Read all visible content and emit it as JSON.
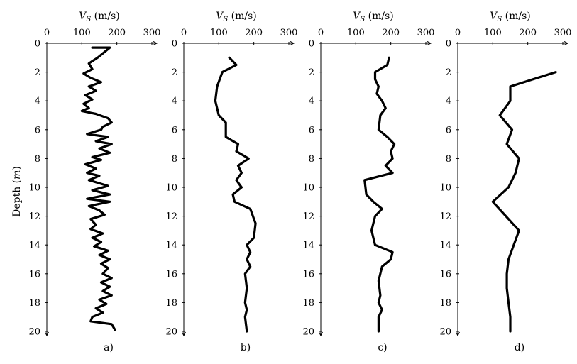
{
  "chart_data": [
    {
      "type": "line",
      "panel_label": "a)",
      "xlabel": "V_S (m/s)",
      "ylabel": "Depth (m)",
      "xlim": [
        0,
        300
      ],
      "ylim": [
        0,
        20
      ],
      "x_ticks": [
        0,
        100,
        200,
        300
      ],
      "y_ticks": [
        0,
        2,
        4,
        6,
        8,
        10,
        12,
        14,
        16,
        18,
        20
      ],
      "series": [
        {
          "points": [
            {
              "x": 130,
              "y": 0.3
            },
            {
              "x": 180,
              "y": 0.3
            },
            {
              "x": 160,
              "y": 0.7
            },
            {
              "x": 145,
              "y": 1.0
            },
            {
              "x": 120,
              "y": 1.4
            },
            {
              "x": 130,
              "y": 1.8
            },
            {
              "x": 105,
              "y": 2.1
            },
            {
              "x": 125,
              "y": 2.4
            },
            {
              "x": 155,
              "y": 2.7
            },
            {
              "x": 120,
              "y": 3.0
            },
            {
              "x": 140,
              "y": 3.3
            },
            {
              "x": 110,
              "y": 3.6
            },
            {
              "x": 130,
              "y": 3.9
            },
            {
              "x": 105,
              "y": 4.2
            },
            {
              "x": 120,
              "y": 4.5
            },
            {
              "x": 100,
              "y": 4.7
            },
            {
              "x": 140,
              "y": 4.9
            },
            {
              "x": 175,
              "y": 5.2
            },
            {
              "x": 185,
              "y": 5.5
            },
            {
              "x": 160,
              "y": 5.8
            },
            {
              "x": 155,
              "y": 6.0
            },
            {
              "x": 115,
              "y": 6.3
            },
            {
              "x": 175,
              "y": 6.5
            },
            {
              "x": 140,
              "y": 6.8
            },
            {
              "x": 185,
              "y": 7.0
            },
            {
              "x": 150,
              "y": 7.3
            },
            {
              "x": 180,
              "y": 7.6
            },
            {
              "x": 130,
              "y": 7.9
            },
            {
              "x": 155,
              "y": 8.1
            },
            {
              "x": 110,
              "y": 8.4
            },
            {
              "x": 140,
              "y": 8.7
            },
            {
              "x": 115,
              "y": 9.0
            },
            {
              "x": 150,
              "y": 9.2
            },
            {
              "x": 120,
              "y": 9.5
            },
            {
              "x": 175,
              "y": 9.9
            },
            {
              "x": 130,
              "y": 10.2
            },
            {
              "x": 180,
              "y": 10.5
            },
            {
              "x": 115,
              "y": 10.8
            },
            {
              "x": 180,
              "y": 11.0
            },
            {
              "x": 120,
              "y": 11.3
            },
            {
              "x": 150,
              "y": 11.6
            },
            {
              "x": 165,
              "y": 11.9
            },
            {
              "x": 125,
              "y": 12.2
            },
            {
              "x": 140,
              "y": 12.6
            },
            {
              "x": 125,
              "y": 12.9
            },
            {
              "x": 160,
              "y": 13.2
            },
            {
              "x": 130,
              "y": 13.5
            },
            {
              "x": 155,
              "y": 13.8
            },
            {
              "x": 135,
              "y": 14.1
            },
            {
              "x": 175,
              "y": 14.4
            },
            {
              "x": 150,
              "y": 14.7
            },
            {
              "x": 180,
              "y": 15.0
            },
            {
              "x": 155,
              "y": 15.3
            },
            {
              "x": 175,
              "y": 15.6
            },
            {
              "x": 160,
              "y": 16.0
            },
            {
              "x": 185,
              "y": 16.3
            },
            {
              "x": 155,
              "y": 16.6
            },
            {
              "x": 180,
              "y": 16.9
            },
            {
              "x": 160,
              "y": 17.2
            },
            {
              "x": 185,
              "y": 17.5
            },
            {
              "x": 150,
              "y": 17.8
            },
            {
              "x": 170,
              "y": 18.1
            },
            {
              "x": 140,
              "y": 18.4
            },
            {
              "x": 160,
              "y": 18.7
            },
            {
              "x": 130,
              "y": 19.0
            },
            {
              "x": 125,
              "y": 19.3
            },
            {
              "x": 185,
              "y": 19.5
            },
            {
              "x": 195,
              "y": 19.9
            }
          ]
        }
      ]
    },
    {
      "type": "line",
      "panel_label": "b)",
      "xlabel": "V_S (m/s)",
      "ylabel": "",
      "xlim": [
        0,
        300
      ],
      "ylim": [
        0,
        20
      ],
      "x_ticks": [
        0,
        100,
        200,
        300
      ],
      "y_ticks": [
        0,
        2,
        4,
        6,
        8,
        10,
        12,
        14,
        16,
        18,
        20
      ],
      "series": [
        {
          "points": [
            {
              "x": 130,
              "y": 1.0
            },
            {
              "x": 150,
              "y": 1.5
            },
            {
              "x": 110,
              "y": 2.0
            },
            {
              "x": 95,
              "y": 3.0
            },
            {
              "x": 90,
              "y": 4.0
            },
            {
              "x": 100,
              "y": 5.0
            },
            {
              "x": 120,
              "y": 5.5
            },
            {
              "x": 120,
              "y": 6.5
            },
            {
              "x": 155,
              "y": 7.0
            },
            {
              "x": 150,
              "y": 7.5
            },
            {
              "x": 185,
              "y": 8.0
            },
            {
              "x": 155,
              "y": 8.5
            },
            {
              "x": 165,
              "y": 9.0
            },
            {
              "x": 150,
              "y": 9.5
            },
            {
              "x": 165,
              "y": 10.0
            },
            {
              "x": 140,
              "y": 10.5
            },
            {
              "x": 145,
              "y": 11.0
            },
            {
              "x": 190,
              "y": 11.5
            },
            {
              "x": 205,
              "y": 12.5
            },
            {
              "x": 200,
              "y": 13.5
            },
            {
              "x": 180,
              "y": 14.0
            },
            {
              "x": 190,
              "y": 14.5
            },
            {
              "x": 180,
              "y": 15.0
            },
            {
              "x": 190,
              "y": 15.5
            },
            {
              "x": 175,
              "y": 16.0
            },
            {
              "x": 180,
              "y": 17.0
            },
            {
              "x": 175,
              "y": 18.0
            },
            {
              "x": 180,
              "y": 18.5
            },
            {
              "x": 175,
              "y": 19.0
            },
            {
              "x": 180,
              "y": 20.0
            }
          ]
        }
      ]
    },
    {
      "type": "line",
      "panel_label": "c)",
      "xlabel": "V_S (m/s)",
      "ylabel": "",
      "xlim": [
        0,
        300
      ],
      "ylim": [
        0,
        20
      ],
      "x_ticks": [
        0,
        100,
        200,
        300
      ],
      "y_ticks": [
        0,
        2,
        4,
        6,
        8,
        10,
        12,
        14,
        16,
        18,
        20
      ],
      "series": [
        {
          "points": [
            {
              "x": 195,
              "y": 1.0
            },
            {
              "x": 190,
              "y": 1.5
            },
            {
              "x": 155,
              "y": 2.0
            },
            {
              "x": 155,
              "y": 2.5
            },
            {
              "x": 165,
              "y": 3.0
            },
            {
              "x": 160,
              "y": 3.5
            },
            {
              "x": 175,
              "y": 4.0
            },
            {
              "x": 185,
              "y": 4.5
            },
            {
              "x": 170,
              "y": 5.0
            },
            {
              "x": 165,
              "y": 6.0
            },
            {
              "x": 190,
              "y": 6.5
            },
            {
              "x": 210,
              "y": 7.0
            },
            {
              "x": 200,
              "y": 7.5
            },
            {
              "x": 205,
              "y": 8.0
            },
            {
              "x": 185,
              "y": 8.5
            },
            {
              "x": 205,
              "y": 9.0
            },
            {
              "x": 125,
              "y": 9.5
            },
            {
              "x": 130,
              "y": 10.5
            },
            {
              "x": 150,
              "y": 11.0
            },
            {
              "x": 175,
              "y": 11.5
            },
            {
              "x": 155,
              "y": 12.0
            },
            {
              "x": 145,
              "y": 13.0
            },
            {
              "x": 155,
              "y": 14.0
            },
            {
              "x": 205,
              "y": 14.5
            },
            {
              "x": 200,
              "y": 15.0
            },
            {
              "x": 175,
              "y": 15.5
            },
            {
              "x": 165,
              "y": 16.5
            },
            {
              "x": 170,
              "y": 17.5
            },
            {
              "x": 165,
              "y": 18.0
            },
            {
              "x": 175,
              "y": 18.5
            },
            {
              "x": 165,
              "y": 19.0
            },
            {
              "x": 165,
              "y": 20.0
            }
          ]
        }
      ]
    },
    {
      "type": "line",
      "panel_label": "d)",
      "xlabel": "V_S (m/s)",
      "ylabel": "",
      "xlim": [
        0,
        300
      ],
      "ylim": [
        0,
        20
      ],
      "x_ticks": [
        0,
        100,
        200,
        300
      ],
      "y_ticks": [
        0,
        2,
        4,
        6,
        8,
        10,
        12,
        14,
        16,
        18,
        20
      ],
      "series": [
        {
          "points": [
            {
              "x": 280,
              "y": 2.0
            },
            {
              "x": 150,
              "y": 3.0
            },
            {
              "x": 150,
              "y": 4.0
            },
            {
              "x": 120,
              "y": 5.0
            },
            {
              "x": 155,
              "y": 6.0
            },
            {
              "x": 140,
              "y": 7.0
            },
            {
              "x": 175,
              "y": 8.0
            },
            {
              "x": 165,
              "y": 9.0
            },
            {
              "x": 145,
              "y": 10.0
            },
            {
              "x": 100,
              "y": 11.0
            },
            {
              "x": 175,
              "y": 13.0
            },
            {
              "x": 145,
              "y": 15.0
            },
            {
              "x": 140,
              "y": 16.0
            },
            {
              "x": 140,
              "y": 17.0
            },
            {
              "x": 145,
              "y": 18.0
            },
            {
              "x": 150,
              "y": 19.0
            },
            {
              "x": 150,
              "y": 20.0
            }
          ]
        }
      ]
    }
  ]
}
